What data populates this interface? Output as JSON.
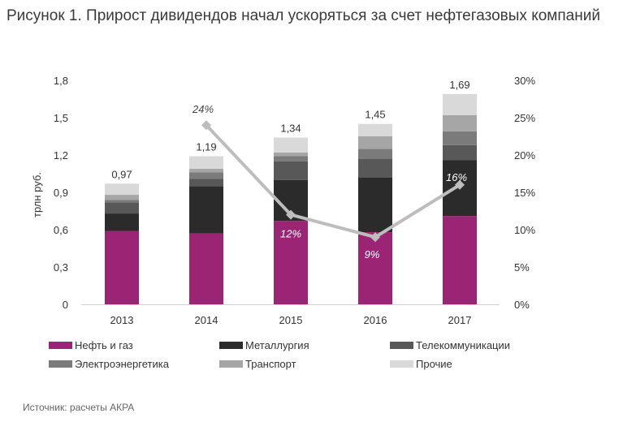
{
  "title": "Рисунок 1. Прирост дивидендов начал ускоряться за счет нефтегазовых компаний",
  "source": "Источник: расчеты АКРА",
  "chart_data": {
    "type": "bar",
    "stacked": true,
    "categories": [
      "2013",
      "2014",
      "2015",
      "2016",
      "2017"
    ],
    "ylabel": "трлн руб.",
    "ylim": [
      0,
      1.8
    ],
    "y_ticks": [
      "0",
      "0,3",
      "0,6",
      "0,9",
      "1,2",
      "1,5",
      "1,8"
    ],
    "y2lim": [
      0,
      30
    ],
    "y2_ticks": [
      "0%",
      "5%",
      "10%",
      "15%",
      "20%",
      "25%",
      "30%"
    ],
    "series": [
      {
        "name": "Нефть и газ",
        "color": "#9b2574",
        "values": [
          0.59,
          0.57,
          0.67,
          0.58,
          0.71
        ]
      },
      {
        "name": "Металлургия",
        "color": "#2b2b2b",
        "values": [
          0.14,
          0.38,
          0.33,
          0.44,
          0.45
        ]
      },
      {
        "name": "Телекоммуникации",
        "color": "#585858",
        "values": [
          0.09,
          0.06,
          0.15,
          0.15,
          0.12
        ]
      },
      {
        "name": "Электроэнергетика",
        "color": "#7b7b7b",
        "values": [
          0.02,
          0.05,
          0.04,
          0.08,
          0.11
        ]
      },
      {
        "name": "Транспорт",
        "color": "#a6a6a6",
        "values": [
          0.04,
          0.03,
          0.03,
          0.1,
          0.13
        ]
      },
      {
        "name": "Прочие",
        "color": "#d9d9d9",
        "values": [
          0.09,
          0.1,
          0.12,
          0.1,
          0.17
        ]
      }
    ],
    "totals": [
      0.97,
      1.19,
      1.34,
      1.45,
      1.69
    ],
    "total_labels": [
      "0,97",
      "1,19",
      "1,34",
      "1,45",
      "1,69"
    ],
    "line": {
      "color": "#bdbdbd",
      "axis": "right",
      "values": [
        null,
        24,
        12,
        9,
        16
      ],
      "labels": [
        "",
        "24%",
        "12%",
        "9%",
        "16%"
      ]
    },
    "grid": false,
    "legend_position": "bottom"
  }
}
